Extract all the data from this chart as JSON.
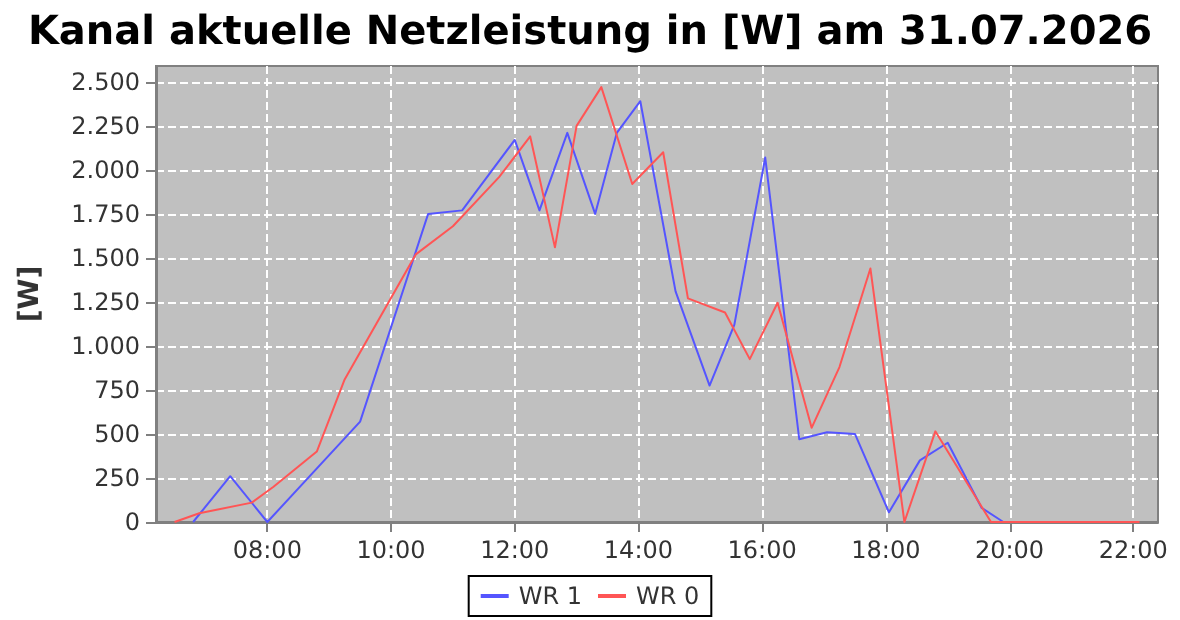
{
  "chart_data": {
    "type": "line",
    "title": "Kanal aktuelle Netzleistung in [W] am 31.07.2026",
    "ylabel": "[W]",
    "xlim": [
      6.2,
      22.4
    ],
    "xticks": [
      {
        "value": 8,
        "label": "08:00"
      },
      {
        "value": 10,
        "label": "10:00"
      },
      {
        "value": 12,
        "label": "12:00"
      },
      {
        "value": 14,
        "label": "14:00"
      },
      {
        "value": 16,
        "label": "16:00"
      },
      {
        "value": 18,
        "label": "18:00"
      },
      {
        "value": 20,
        "label": "20:00"
      },
      {
        "value": 22,
        "label": "22:00"
      }
    ],
    "ylim": [
      0,
      2590
    ],
    "yticks": [
      0,
      250,
      500,
      750,
      {
        "value": 1000,
        "label": "1.000"
      },
      {
        "value": 1250,
        "label": "1.250"
      },
      {
        "value": 1500,
        "label": "1.500"
      },
      {
        "value": 1750,
        "label": "1.750"
      },
      {
        "value": 2000,
        "label": "2.000"
      },
      {
        "value": 2250,
        "label": "2.250"
      },
      {
        "value": 2500,
        "label": "2.500"
      }
    ],
    "grid": true,
    "legend": "bottom",
    "marker": "none",
    "line_style": "solid",
    "series": [
      {
        "name": "WR 1",
        "color": "#5555ff",
        "x": [
          6.8,
          7.4,
          8.0,
          9.5,
          10.6,
          11.15,
          12.0,
          12.4,
          12.85,
          13.3,
          13.65,
          14.03,
          14.6,
          15.15,
          15.55,
          16.05,
          16.6,
          17.05,
          17.5,
          18.05,
          18.55,
          19.0,
          19.55,
          19.9,
          22.0
        ],
        "values": [
          0,
          260,
          0,
          570,
          1750,
          1770,
          2170,
          1770,
          2210,
          1750,
          2210,
          2390,
          1310,
          775,
          1120,
          2070,
          470,
          510,
          500,
          55,
          350,
          450,
          80,
          0,
          0
        ]
      },
      {
        "name": "WR 0",
        "color": "#ff5555",
        "x": [
          6.5,
          6.9,
          7.75,
          8.1,
          8.8,
          9.25,
          10.4,
          11.0,
          11.75,
          12.25,
          12.65,
          13.0,
          13.4,
          13.9,
          14.4,
          14.8,
          15.4,
          15.8,
          16.25,
          16.8,
          17.25,
          17.75,
          18.3,
          18.8,
          19.7,
          22.1
        ],
        "values": [
          0,
          50,
          110,
          200,
          400,
          810,
          1520,
          1680,
          1960,
          2190,
          1560,
          2250,
          2470,
          1920,
          2100,
          1270,
          1190,
          925,
          1245,
          535,
          880,
          1440,
          0,
          515,
          0,
          0
        ]
      }
    ]
  }
}
